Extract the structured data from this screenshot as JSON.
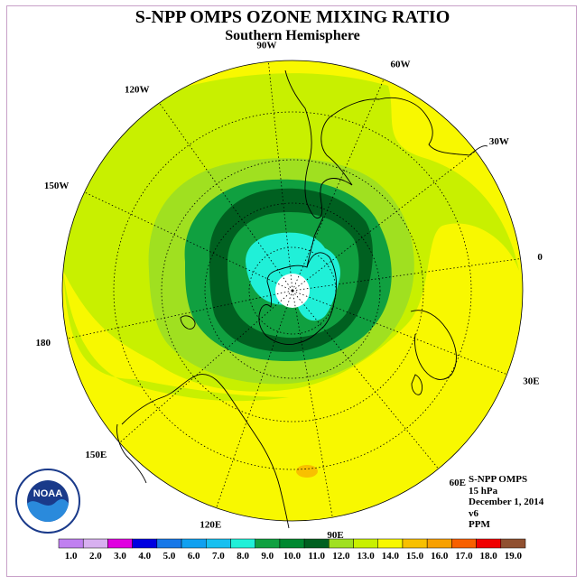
{
  "title": "S-NPP OMPS OZONE MIXING RATIO",
  "subtitle": "Southern Hemisphere",
  "info": {
    "product": "S-NPP OMPS",
    "pressure": "15 hPa",
    "date": "December 1, 2014",
    "version": "v6",
    "units": "PPM"
  },
  "logo_text": "NOAA",
  "longitude_labels": [
    {
      "name": "90W",
      "lon": -90
    },
    {
      "name": "60W",
      "lon": -60
    },
    {
      "name": "30W",
      "lon": -30
    },
    {
      "name": "0",
      "lon": 0
    },
    {
      "name": "30E",
      "lon": 30
    },
    {
      "name": "60E",
      "lon": 60
    },
    {
      "name": "90E",
      "lon": 90
    },
    {
      "name": "120E",
      "lon": 120
    },
    {
      "name": "150E",
      "lon": 150
    },
    {
      "name": "180",
      "lon": 180
    },
    {
      "name": "150W",
      "lon": -150
    },
    {
      "name": "120W",
      "lon": -120
    }
  ],
  "colorbar": {
    "ticks": [
      "1.0",
      "2.0",
      "3.0",
      "4.0",
      "5.0",
      "6.0",
      "7.0",
      "8.0",
      "9.0",
      "10.0",
      "11.0",
      "12.0",
      "13.0",
      "14.0",
      "15.0",
      "16.0",
      "17.0",
      "18.0",
      "19.0"
    ],
    "colors": [
      "#c080f0",
      "#d8b0f0",
      "#e000e0",
      "#0000e0",
      "#1878e8",
      "#10a0f0",
      "#18c0f0",
      "#20f0d8",
      "#10a040",
      "#008830",
      "#006020",
      "#a0e020",
      "#c8f000",
      "#f8f800",
      "#f8c000",
      "#f8a000",
      "#f86000",
      "#f00000",
      "#905030"
    ]
  },
  "chart_data": {
    "type": "heatmap",
    "title": "S-NPP OMPS OZONE MIXING RATIO",
    "subtitle": "Southern Hemisphere",
    "projection": "polar stereographic, south pole centered",
    "variable": "ozone mixing ratio",
    "units": "PPM",
    "pressure_level": "15 hPa",
    "date": "December 1, 2014",
    "value_range": [
      1.0,
      19.0
    ],
    "contour_interval": 1.0,
    "regions": [
      {
        "area": "south pole center",
        "value_range": "no data"
      },
      {
        "area": "polar vortex core (Antarctica)",
        "value_range": [
          8.0,
          9.0
        ]
      },
      {
        "area": "inner ring around core",
        "value_range": [
          9.0,
          10.0
        ]
      },
      {
        "area": "vortex edge band",
        "value_range": [
          10.0,
          11.0
        ]
      },
      {
        "area": "surrounding band",
        "value_range": [
          9.0,
          10.0
        ]
      },
      {
        "area": "mid latitudes",
        "value_range": [
          11.0,
          13.0
        ]
      },
      {
        "area": "subtropics / outer region",
        "value_range": [
          13.0,
          14.0
        ]
      },
      {
        "area": "small patch near 90E",
        "value_range": [
          14.0,
          15.0
        ]
      }
    ]
  }
}
